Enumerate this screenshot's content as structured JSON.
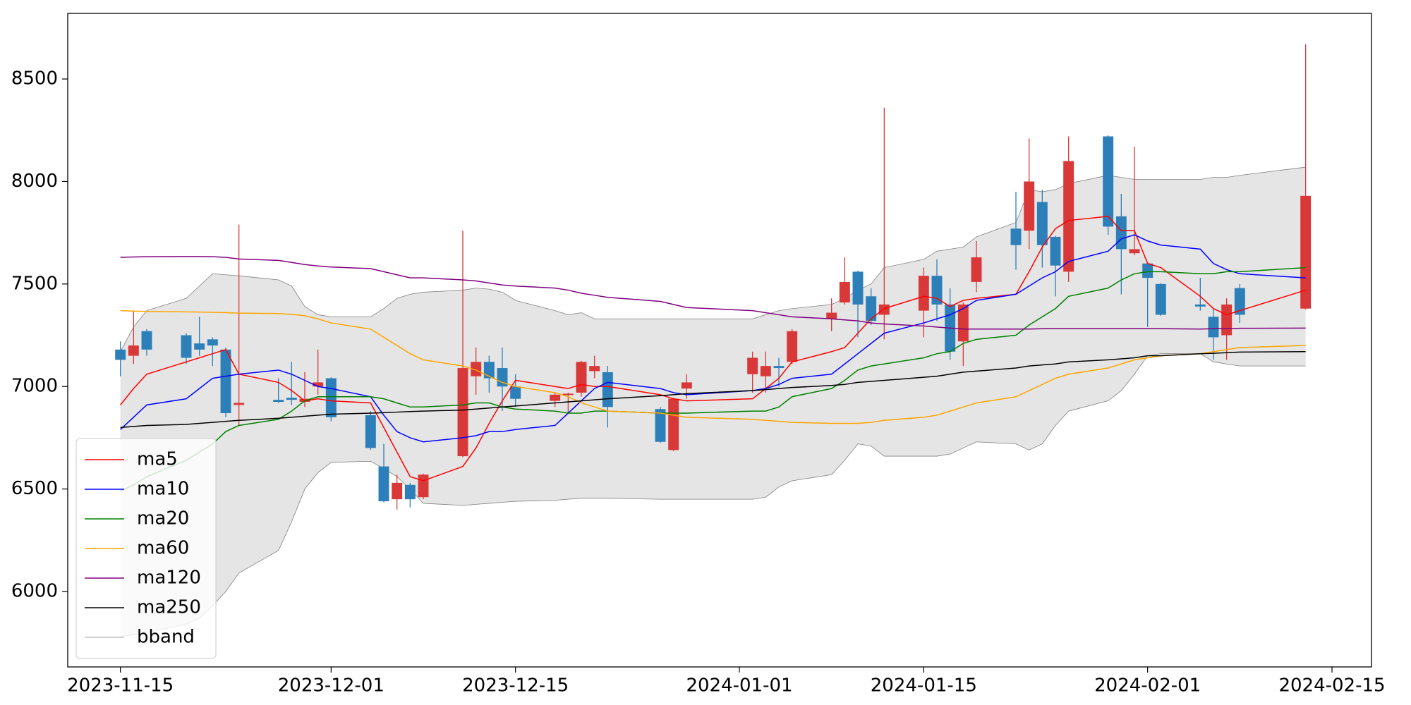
{
  "chart_data": {
    "type": "candlestick",
    "x": [
      "2023-11-15",
      "2023-11-16",
      "2023-11-17",
      "2023-11-20",
      "2023-11-21",
      "2023-11-22",
      "2023-11-23",
      "2023-11-24",
      "2023-11-27",
      "2023-11-28",
      "2023-11-29",
      "2023-11-30",
      "2023-12-01",
      "2023-12-04",
      "2023-12-05",
      "2023-12-06",
      "2023-12-07",
      "2023-12-08",
      "2023-12-11",
      "2023-12-12",
      "2023-12-13",
      "2023-12-14",
      "2023-12-15",
      "2023-12-18",
      "2023-12-19",
      "2023-12-20",
      "2023-12-21",
      "2023-12-22",
      "2023-12-26",
      "2023-12-27",
      "2023-12-28",
      "2024-01-02",
      "2024-01-03",
      "2024-01-04",
      "2024-01-05",
      "2024-01-08",
      "2024-01-09",
      "2024-01-10",
      "2024-01-11",
      "2024-01-12",
      "2024-01-15",
      "2024-01-16",
      "2024-01-17",
      "2024-01-18",
      "2024-01-19",
      "2024-01-22",
      "2024-01-23",
      "2024-01-24",
      "2024-01-25",
      "2024-01-26",
      "2024-01-29",
      "2024-01-30",
      "2024-01-31",
      "2024-02-01",
      "2024-02-02",
      "2024-02-05",
      "2024-02-06",
      "2024-02-07",
      "2024-02-08",
      "2024-02-13"
    ],
    "open": [
      7180,
      7150,
      7270,
      7250,
      7210,
      7230,
      7180,
      6910,
      6935,
      6945,
      6925,
      7000,
      7040,
      6860,
      6610,
      6450,
      6520,
      6460,
      6660,
      7050,
      7120,
      7090,
      7000,
      6930,
      6958,
      6970,
      7075,
      7070,
      6890,
      6690,
      6990,
      7060,
      7050,
      7100,
      7120,
      7330,
      7410,
      7560,
      7440,
      7350,
      7370,
      7540,
      7400,
      7220,
      7510,
      7770,
      7760,
      7900,
      7730,
      7560,
      8220,
      7830,
      7650,
      7600,
      7500,
      7400,
      7340,
      7250,
      7480,
      7380
    ],
    "high": [
      7220,
      7370,
      7280,
      7260,
      7340,
      7240,
      7190,
      7790,
      7040,
      7120,
      7070,
      7180,
      7045,
      6880,
      6720,
      6570,
      6530,
      6575,
      7760,
      7190,
      7150,
      7190,
      7060,
      6970,
      6970,
      7125,
      7150,
      7100,
      6900,
      6945,
      7060,
      7170,
      7170,
      7140,
      7280,
      7430,
      7630,
      7565,
      7480,
      8360,
      7580,
      7620,
      7480,
      7410,
      7710,
      7950,
      8210,
      7960,
      7735,
      8220,
      8225,
      7940,
      8170,
      7605,
      7505,
      7530,
      7380,
      7430,
      7500,
      8670
    ],
    "low": [
      7050,
      7110,
      7150,
      7110,
      7150,
      7100,
      6850,
      6810,
      6920,
      6910,
      6900,
      6960,
      6830,
      6690,
      6435,
      6400,
      6410,
      6450,
      6655,
      6960,
      6970,
      6880,
      6900,
      6900,
      6870,
      6950,
      7040,
      6800,
      6725,
      6685,
      6940,
      6970,
      6970,
      7000,
      7110,
      7270,
      7400,
      7240,
      7300,
      7230,
      7240,
      7320,
      7130,
      7100,
      7460,
      7570,
      7670,
      7580,
      7440,
      7510,
      7740,
      7450,
      7640,
      7290,
      7345,
      7370,
      7130,
      7130,
      7310,
      7375
    ],
    "close": [
      7130,
      7200,
      7180,
      7140,
      7180,
      7200,
      6870,
      6920,
      6925,
      6935,
      6940,
      7020,
      6850,
      6700,
      6440,
      6530,
      6450,
      6570,
      7090,
      7120,
      7040,
      7000,
      6940,
      6960,
      6965,
      7120,
      7100,
      6900,
      6730,
      6940,
      7020,
      7140,
      7100,
      7090,
      7270,
      7360,
      7510,
      7400,
      7320,
      7400,
      7540,
      7400,
      7170,
      7400,
      7630,
      7690,
      8000,
      7690,
      7590,
      8100,
      7780,
      7670,
      7670,
      7530,
      7350,
      7390,
      7240,
      7400,
      7350,
      7930
    ],
    "up_color": "#d93838",
    "down_color": "#2c7fb8",
    "series": [
      {
        "name": "ma5",
        "color": "#ff0000",
        "values": [
          6910,
          6990,
          7060,
          7120,
          7140,
          7160,
          7180,
          7060,
          7020,
          6980,
          6930,
          6940,
          6930,
          6920,
          6800,
          6680,
          6560,
          6540,
          6610,
          6700,
          6820,
          6930,
          7030,
          7000,
          6990,
          7010,
          7000,
          7000,
          6960,
          6940,
          6930,
          6940,
          6990,
          7040,
          7120,
          7170,
          7190,
          7260,
          7330,
          7380,
          7440,
          7430,
          7390,
          7420,
          7430,
          7450,
          7560,
          7680,
          7770,
          7810,
          7830,
          7760,
          7760,
          7600,
          7580,
          7440,
          7380,
          7350,
          7370,
          7470
        ]
      },
      {
        "name": "ma10",
        "color": "#0000ff",
        "values": [
          6790,
          6850,
          6910,
          6940,
          6990,
          7040,
          7050,
          7060,
          7080,
          7060,
          7030,
          7000,
          6990,
          6950,
          6860,
          6780,
          6750,
          6730,
          6750,
          6760,
          6780,
          6780,
          6790,
          6810,
          6870,
          6930,
          6990,
          7020,
          6990,
          6970,
          6960,
          6980,
          6990,
          7010,
          7040,
          7060,
          7110,
          7160,
          7210,
          7260,
          7310,
          7330,
          7350,
          7380,
          7420,
          7450,
          7490,
          7530,
          7560,
          7610,
          7660,
          7720,
          7740,
          7710,
          7690,
          7670,
          7600,
          7570,
          7550,
          7530
        ]
      },
      {
        "name": "ma20",
        "color": "#008000",
        "values": [
          6490,
          6520,
          6560,
          6640,
          6680,
          6720,
          6780,
          6810,
          6840,
          6880,
          6930,
          6950,
          6950,
          6950,
          6940,
          6920,
          6900,
          6900,
          6910,
          6920,
          6920,
          6900,
          6890,
          6880,
          6870,
          6870,
          6880,
          6880,
          6870,
          6870,
          6870,
          6880,
          6880,
          6900,
          6950,
          6990,
          7030,
          7080,
          7100,
          7110,
          7140,
          7160,
          7170,
          7210,
          7230,
          7250,
          7300,
          7340,
          7380,
          7440,
          7480,
          7520,
          7550,
          7560,
          7560,
          7550,
          7550,
          7560,
          7560,
          7580
        ]
      },
      {
        "name": "ma60",
        "color": "#ffa500",
        "values": [
          7370,
          7368,
          7366,
          7364,
          7363,
          7362,
          7360,
          7358,
          7356,
          7352,
          7345,
          7330,
          7310,
          7280,
          7240,
          7200,
          7160,
          7130,
          7100,
          7080,
          7050,
          7020,
          7000,
          6970,
          6950,
          6920,
          6900,
          6880,
          6870,
          6860,
          6850,
          6840,
          6835,
          6830,
          6825,
          6820,
          6820,
          6820,
          6825,
          6835,
          6850,
          6860,
          6880,
          6900,
          6920,
          6950,
          6980,
          7010,
          7040,
          7060,
          7090,
          7110,
          7130,
          7140,
          7150,
          7160,
          7170,
          7180,
          7190,
          7200
        ]
      },
      {
        "name": "ma120",
        "color": "#800080",
        "values": [
          7630,
          7632,
          7633,
          7634,
          7634,
          7633,
          7630,
          7622,
          7615,
          7605,
          7595,
          7588,
          7583,
          7575,
          7560,
          7545,
          7530,
          7530,
          7520,
          7515,
          7505,
          7495,
          7490,
          7480,
          7470,
          7455,
          7445,
          7435,
          7415,
          7400,
          7385,
          7370,
          7360,
          7350,
          7340,
          7330,
          7325,
          7320,
          7310,
          7305,
          7295,
          7290,
          7285,
          7280,
          7280,
          7280,
          7280,
          7282,
          7282,
          7282,
          7282,
          7282,
          7282,
          7282,
          7282,
          7280,
          7282,
          7282,
          7284,
          7285
        ]
      },
      {
        "name": "ma250",
        "color": "#000000",
        "values": [
          6800,
          6805,
          6810,
          6815,
          6820,
          6825,
          6830,
          6835,
          6845,
          6850,
          6855,
          6860,
          6865,
          6870,
          6872,
          6875,
          6878,
          6880,
          6885,
          6890,
          6895,
          6900,
          6905,
          6920,
          6925,
          6930,
          6935,
          6940,
          6955,
          6960,
          6965,
          6980,
          6985,
          6990,
          6995,
          7005,
          7010,
          7020,
          7025,
          7030,
          7045,
          7050,
          7060,
          7070,
          7075,
          7090,
          7100,
          7105,
          7110,
          7120,
          7130,
          7135,
          7140,
          7150,
          7150,
          7160,
          7162,
          7165,
          7168,
          7170
        ]
      }
    ],
    "bands": [
      {
        "name": "bband",
        "color": "#808080",
        "fill": "#e5e5e5",
        "upper": [
          7170,
          7290,
          7370,
          7430,
          7490,
          7550,
          7545,
          7540,
          7520,
          7490,
          7390,
          7350,
          7340,
          7340,
          7380,
          7430,
          7450,
          7460,
          7470,
          7480,
          7475,
          7460,
          7420,
          7370,
          7350,
          7360,
          7330,
          7330,
          7330,
          7330,
          7330,
          7330,
          7350,
          7370,
          7380,
          7400,
          7430,
          7470,
          7500,
          7580,
          7620,
          7660,
          7670,
          7680,
          7730,
          7800,
          7960,
          7950,
          7960,
          7990,
          8030,
          8020,
          8010,
          8010,
          8010,
          8010,
          8020,
          8020,
          8030,
          8070
        ],
        "lower": [
          5780,
          5790,
          5800,
          5840,
          5870,
          5930,
          6000,
          6090,
          6200,
          6340,
          6500,
          6580,
          6630,
          6635,
          6600,
          6560,
          6500,
          6430,
          6420,
          6425,
          6430,
          6435,
          6440,
          6445,
          6450,
          6455,
          6455,
          6455,
          6450,
          6450,
          6450,
          6450,
          6460,
          6510,
          6540,
          6570,
          6640,
          6720,
          6710,
          6660,
          6660,
          6660,
          6670,
          6700,
          6730,
          6720,
          6690,
          6720,
          6810,
          6880,
          6930,
          6980,
          7060,
          7150,
          7160,
          7160,
          7120,
          7110,
          7100,
          7100
        ]
      }
    ],
    "xlim": [
      "2023-11-11",
      "2024-02-18"
    ],
    "xticks": [
      "2023-11-15",
      "2023-12-01",
      "2023-12-15",
      "2024-01-01",
      "2024-01-15",
      "2024-02-01",
      "2024-02-15"
    ],
    "ylim": [
      5632,
      8820
    ],
    "yticks": [
      6000,
      6500,
      7000,
      7500,
      8000,
      8500
    ],
    "legend": "lower left"
  }
}
